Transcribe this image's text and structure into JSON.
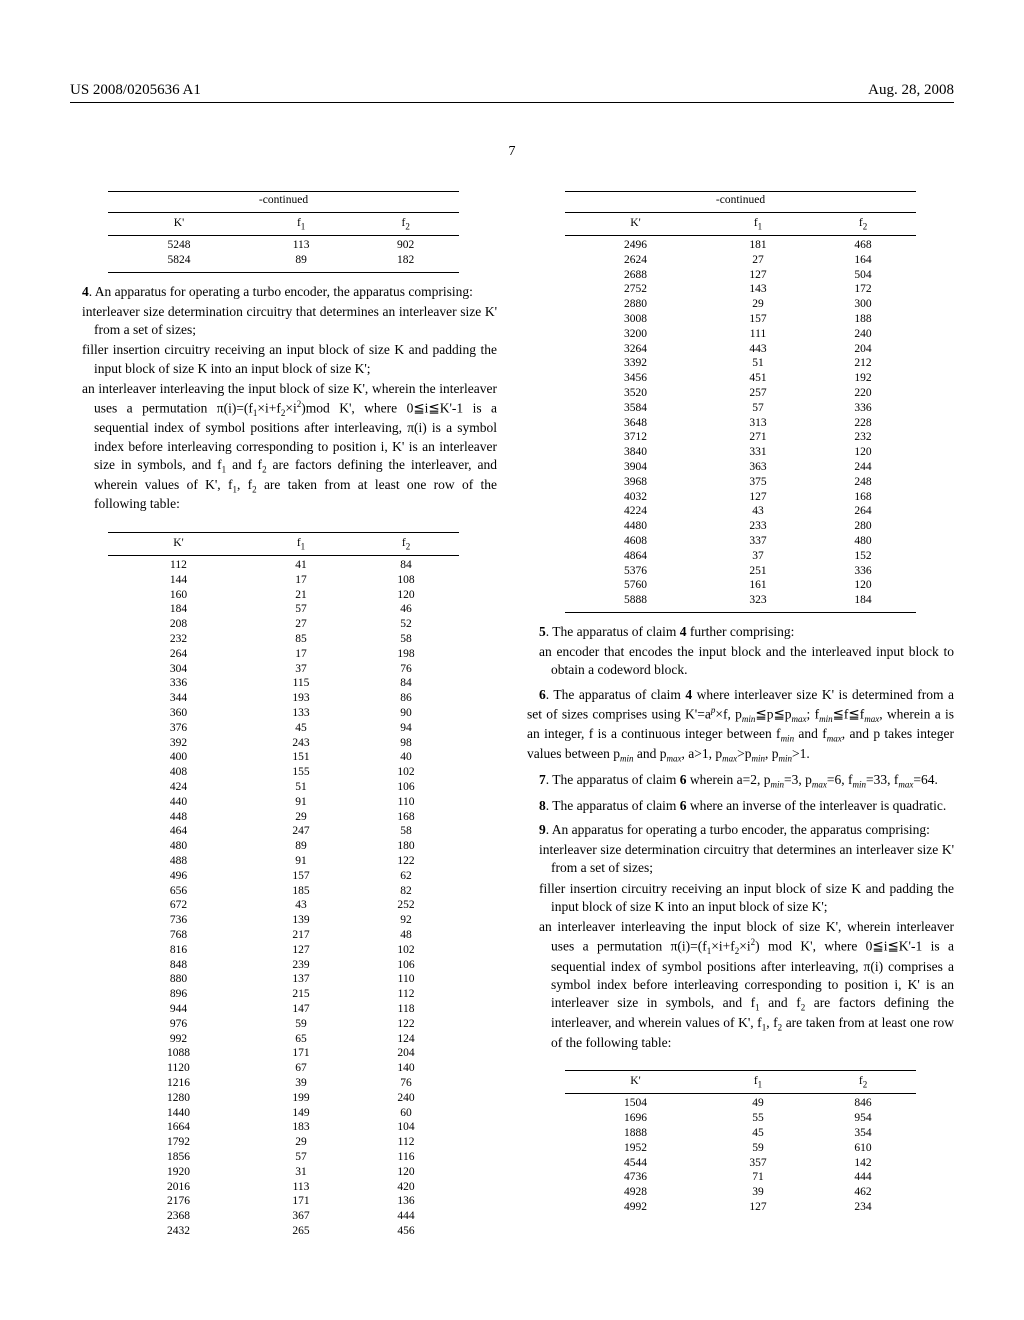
{
  "header": {
    "left": "US 2008/0205636 A1",
    "right": "Aug. 28, 2008"
  },
  "page_number": "7",
  "continued_label": "-continued",
  "table_header": {
    "c1": "K'",
    "c2": "f",
    "c2sub": "1",
    "c3": "f",
    "c3sub": "2"
  },
  "left_top_table": {
    "rows": [
      [
        "5248",
        "113",
        "902"
      ],
      [
        "5824",
        "89",
        "182"
      ]
    ]
  },
  "claim4": {
    "num": "4",
    "lead": ". An apparatus for operating a turbo encoder, the apparatus comprising:",
    "b1": "interleaver size determination circuitry that determines an interleaver size K' from a set of sizes;",
    "b2": "filler insertion circuitry receiving an input block of size K and padding the input block of size K into an input block of size K';",
    "b3a": "an interleaver interleaving the input block of size K', wherein the interleaver uses a permutation π(i)=(f",
    "b3b": "×i+f",
    "b3c": "×i",
    "b3d": ")mod K', where 0≦i≦K'-1 is a sequential index of symbol positions after interleaving, π(i) is a symbol index before interleaving corresponding to position i, K' is an interleaver size in symbols, and f",
    "b3e": " and f",
    "b3f": " are factors defining the interleaver, and wherein values of K', f",
    "b3g": ", f",
    "b3h": " are taken from at least one row of the following table:"
  },
  "left_main_table": {
    "rows": [
      [
        "112",
        "41",
        "84"
      ],
      [
        "144",
        "17",
        "108"
      ],
      [
        "160",
        "21",
        "120"
      ],
      [
        "184",
        "57",
        "46"
      ],
      [
        "208",
        "27",
        "52"
      ],
      [
        "232",
        "85",
        "58"
      ],
      [
        "264",
        "17",
        "198"
      ],
      [
        "304",
        "37",
        "76"
      ],
      [
        "336",
        "115",
        "84"
      ],
      [
        "344",
        "193",
        "86"
      ],
      [
        "360",
        "133",
        "90"
      ],
      [
        "376",
        "45",
        "94"
      ],
      [
        "392",
        "243",
        "98"
      ],
      [
        "400",
        "151",
        "40"
      ],
      [
        "408",
        "155",
        "102"
      ],
      [
        "424",
        "51",
        "106"
      ],
      [
        "440",
        "91",
        "110"
      ],
      [
        "448",
        "29",
        "168"
      ],
      [
        "464",
        "247",
        "58"
      ],
      [
        "480",
        "89",
        "180"
      ],
      [
        "488",
        "91",
        "122"
      ],
      [
        "496",
        "157",
        "62"
      ],
      [
        "656",
        "185",
        "82"
      ],
      [
        "672",
        "43",
        "252"
      ],
      [
        "736",
        "139",
        "92"
      ],
      [
        "768",
        "217",
        "48"
      ],
      [
        "816",
        "127",
        "102"
      ],
      [
        "848",
        "239",
        "106"
      ],
      [
        "880",
        "137",
        "110"
      ],
      [
        "896",
        "215",
        "112"
      ],
      [
        "944",
        "147",
        "118"
      ],
      [
        "976",
        "59",
        "122"
      ],
      [
        "992",
        "65",
        "124"
      ],
      [
        "1088",
        "171",
        "204"
      ],
      [
        "1120",
        "67",
        "140"
      ],
      [
        "1216",
        "39",
        "76"
      ],
      [
        "1280",
        "199",
        "240"
      ],
      [
        "1440",
        "149",
        "60"
      ],
      [
        "1664",
        "183",
        "104"
      ],
      [
        "1792",
        "29",
        "112"
      ],
      [
        "1856",
        "57",
        "116"
      ],
      [
        "1920",
        "31",
        "120"
      ],
      [
        "2016",
        "113",
        "420"
      ],
      [
        "2176",
        "171",
        "136"
      ],
      [
        "2368",
        "367",
        "444"
      ],
      [
        "2432",
        "265",
        "456"
      ]
    ]
  },
  "right_top_table": {
    "rows": [
      [
        "2496",
        "181",
        "468"
      ],
      [
        "2624",
        "27",
        "164"
      ],
      [
        "2688",
        "127",
        "504"
      ],
      [
        "2752",
        "143",
        "172"
      ],
      [
        "2880",
        "29",
        "300"
      ],
      [
        "3008",
        "157",
        "188"
      ],
      [
        "3200",
        "111",
        "240"
      ],
      [
        "3264",
        "443",
        "204"
      ],
      [
        "3392",
        "51",
        "212"
      ],
      [
        "3456",
        "451",
        "192"
      ],
      [
        "3520",
        "257",
        "220"
      ],
      [
        "3584",
        "57",
        "336"
      ],
      [
        "3648",
        "313",
        "228"
      ],
      [
        "3712",
        "271",
        "232"
      ],
      [
        "3840",
        "331",
        "120"
      ],
      [
        "3904",
        "363",
        "244"
      ],
      [
        "3968",
        "375",
        "248"
      ],
      [
        "4032",
        "127",
        "168"
      ],
      [
        "4224",
        "43",
        "264"
      ],
      [
        "4480",
        "233",
        "280"
      ],
      [
        "4608",
        "337",
        "480"
      ],
      [
        "4864",
        "37",
        "152"
      ],
      [
        "5376",
        "251",
        "336"
      ],
      [
        "5760",
        "161",
        "120"
      ],
      [
        "5888",
        "323",
        "184"
      ]
    ]
  },
  "claim5": {
    "num": "5",
    "lead": ". The apparatus of claim ",
    "ref": "4",
    "tail": " further comprising:",
    "b1": "an encoder that encodes the input block and the interleaved input block to obtain a codeword block."
  },
  "claim6": {
    "num": "6",
    "a": ". The apparatus of claim ",
    "ref": "4",
    "b": " where interleaver size K' is determined from a set of sizes comprises using K'=a",
    "c": "×f, p",
    "d": "≦p≦p",
    "e": "; f",
    "f": "≦f≦f",
    "g": ", wherein a is an integer, f is a continuous integer between f",
    "h": " and f",
    "i": ", and p takes integer values between p",
    "j": " and p",
    "k": ", a>1, p",
    "l": ">p",
    "m": ", p",
    "n": ">1."
  },
  "claim7": {
    "num": "7",
    "a": ". The apparatus of claim ",
    "ref": "6",
    "b": " wherein a=2, p",
    "c": "=3, p",
    "d": "=6, f",
    "e": "=33, f",
    "f": "=64."
  },
  "claim8": {
    "num": "8",
    "a": ". The apparatus of claim ",
    "ref": "6",
    "b": " where an inverse of the interleaver is quadratic."
  },
  "claim9": {
    "num": "9",
    "lead": ". An apparatus for operating a turbo encoder, the apparatus comprising:",
    "b1": "interleaver size determination circuitry that determines an interleaver size K' from a set of sizes;",
    "b2": "filler insertion circuitry receiving an input block of size K and padding the input block of size K into an input block of size K';",
    "b3a": "an interleaver interleaving the input block of size K', wherein interleaver uses a permutation π(i)=(f",
    "b3b": "×i+f",
    "b3c": "×i",
    "b3d": ") mod K', where 0≦i≦K'-1 is a sequential index of symbol positions after interleaving, π(i) comprises a symbol index before interleaving corresponding to position i, K' is an interleaver size in symbols, and f",
    "b3e": " and f",
    "b3f": " are factors defining the interleaver, and wherein values of K', f",
    "b3g": ", f",
    "b3h": " are taken from at least one row of the following table:"
  },
  "right_bottom_table": {
    "rows": [
      [
        "1504",
        "49",
        "846"
      ],
      [
        "1696",
        "55",
        "954"
      ],
      [
        "1888",
        "45",
        "354"
      ],
      [
        "1952",
        "59",
        "610"
      ],
      [
        "4544",
        "357",
        "142"
      ],
      [
        "4736",
        "71",
        "444"
      ],
      [
        "4928",
        "39",
        "462"
      ],
      [
        "4992",
        "127",
        "234"
      ]
    ]
  },
  "sub": {
    "min": "min",
    "max": "max",
    "one": "1",
    "two": "2"
  },
  "sup": {
    "p": "p",
    "two": "2"
  }
}
